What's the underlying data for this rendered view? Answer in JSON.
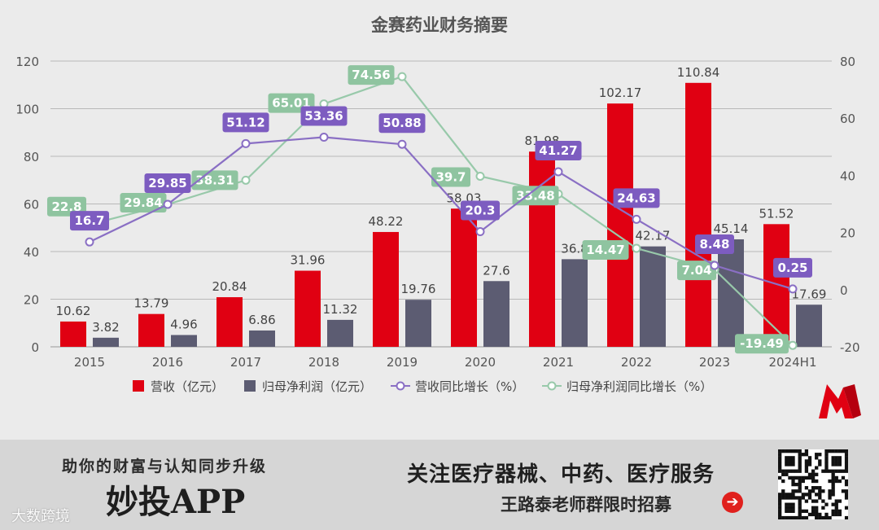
{
  "chart_data": {
    "type": "bar+line",
    "title": "金赛药业财务摘要",
    "categories": [
      "2015",
      "2016",
      "2017",
      "2018",
      "2019",
      "2020",
      "2021",
      "2022",
      "2023",
      "2024H1"
    ],
    "left_axis": {
      "min": 0,
      "max": 120,
      "ticks": [
        0,
        20,
        40,
        60,
        80,
        100,
        120
      ]
    },
    "right_axis": {
      "min": -20,
      "max": 80,
      "ticks": [
        -20,
        0,
        20,
        40,
        60,
        80
      ]
    },
    "series": [
      {
        "name": "营收（亿元）",
        "kind": "bar",
        "axis": "left",
        "color": "#e00012",
        "values": [
          10.62,
          13.79,
          20.84,
          31.96,
          48.22,
          58.03,
          81.98,
          102.17,
          110.84,
          51.52
        ]
      },
      {
        "name": "归母净利润（亿元）",
        "kind": "bar",
        "axis": "left",
        "color": "#5c5c72",
        "values": [
          3.82,
          4.96,
          6.86,
          11.32,
          19.76,
          27.6,
          36.8,
          42.17,
          45.14,
          17.69
        ]
      },
      {
        "name": "营收同比增长（%）",
        "kind": "line",
        "axis": "right",
        "color": "#8a6fc4",
        "label_bg": "#7d5cc0",
        "values": [
          16.7,
          29.85,
          51.12,
          53.36,
          50.88,
          20.3,
          41.27,
          24.63,
          8.48,
          0.25
        ]
      },
      {
        "name": "归母净利润同比增长（%）",
        "kind": "line",
        "axis": "right",
        "color": "#98c9aa",
        "label_bg": "#8fc4a0",
        "values": [
          22.8,
          29.84,
          38.31,
          65.01,
          74.56,
          39.7,
          33.48,
          14.47,
          7.04,
          -19.49
        ]
      }
    ],
    "legend_position": "bottom"
  },
  "brand": {
    "logo_letter": "M"
  },
  "banner": {
    "left_top": "助你的财富与认知同步升级",
    "app_name": "妙投APP",
    "watermark": "大数跨境",
    "right_top": "关注医疗器械、中药、医疗服务",
    "right_bottom": "王路泰老师群限时招募",
    "arrow_glyph": "➔"
  },
  "colors": {
    "revenue": "#e00012",
    "profit": "#5c5c72",
    "rev_growth": "#8a6fc4",
    "profit_growth": "#98c9aa"
  }
}
